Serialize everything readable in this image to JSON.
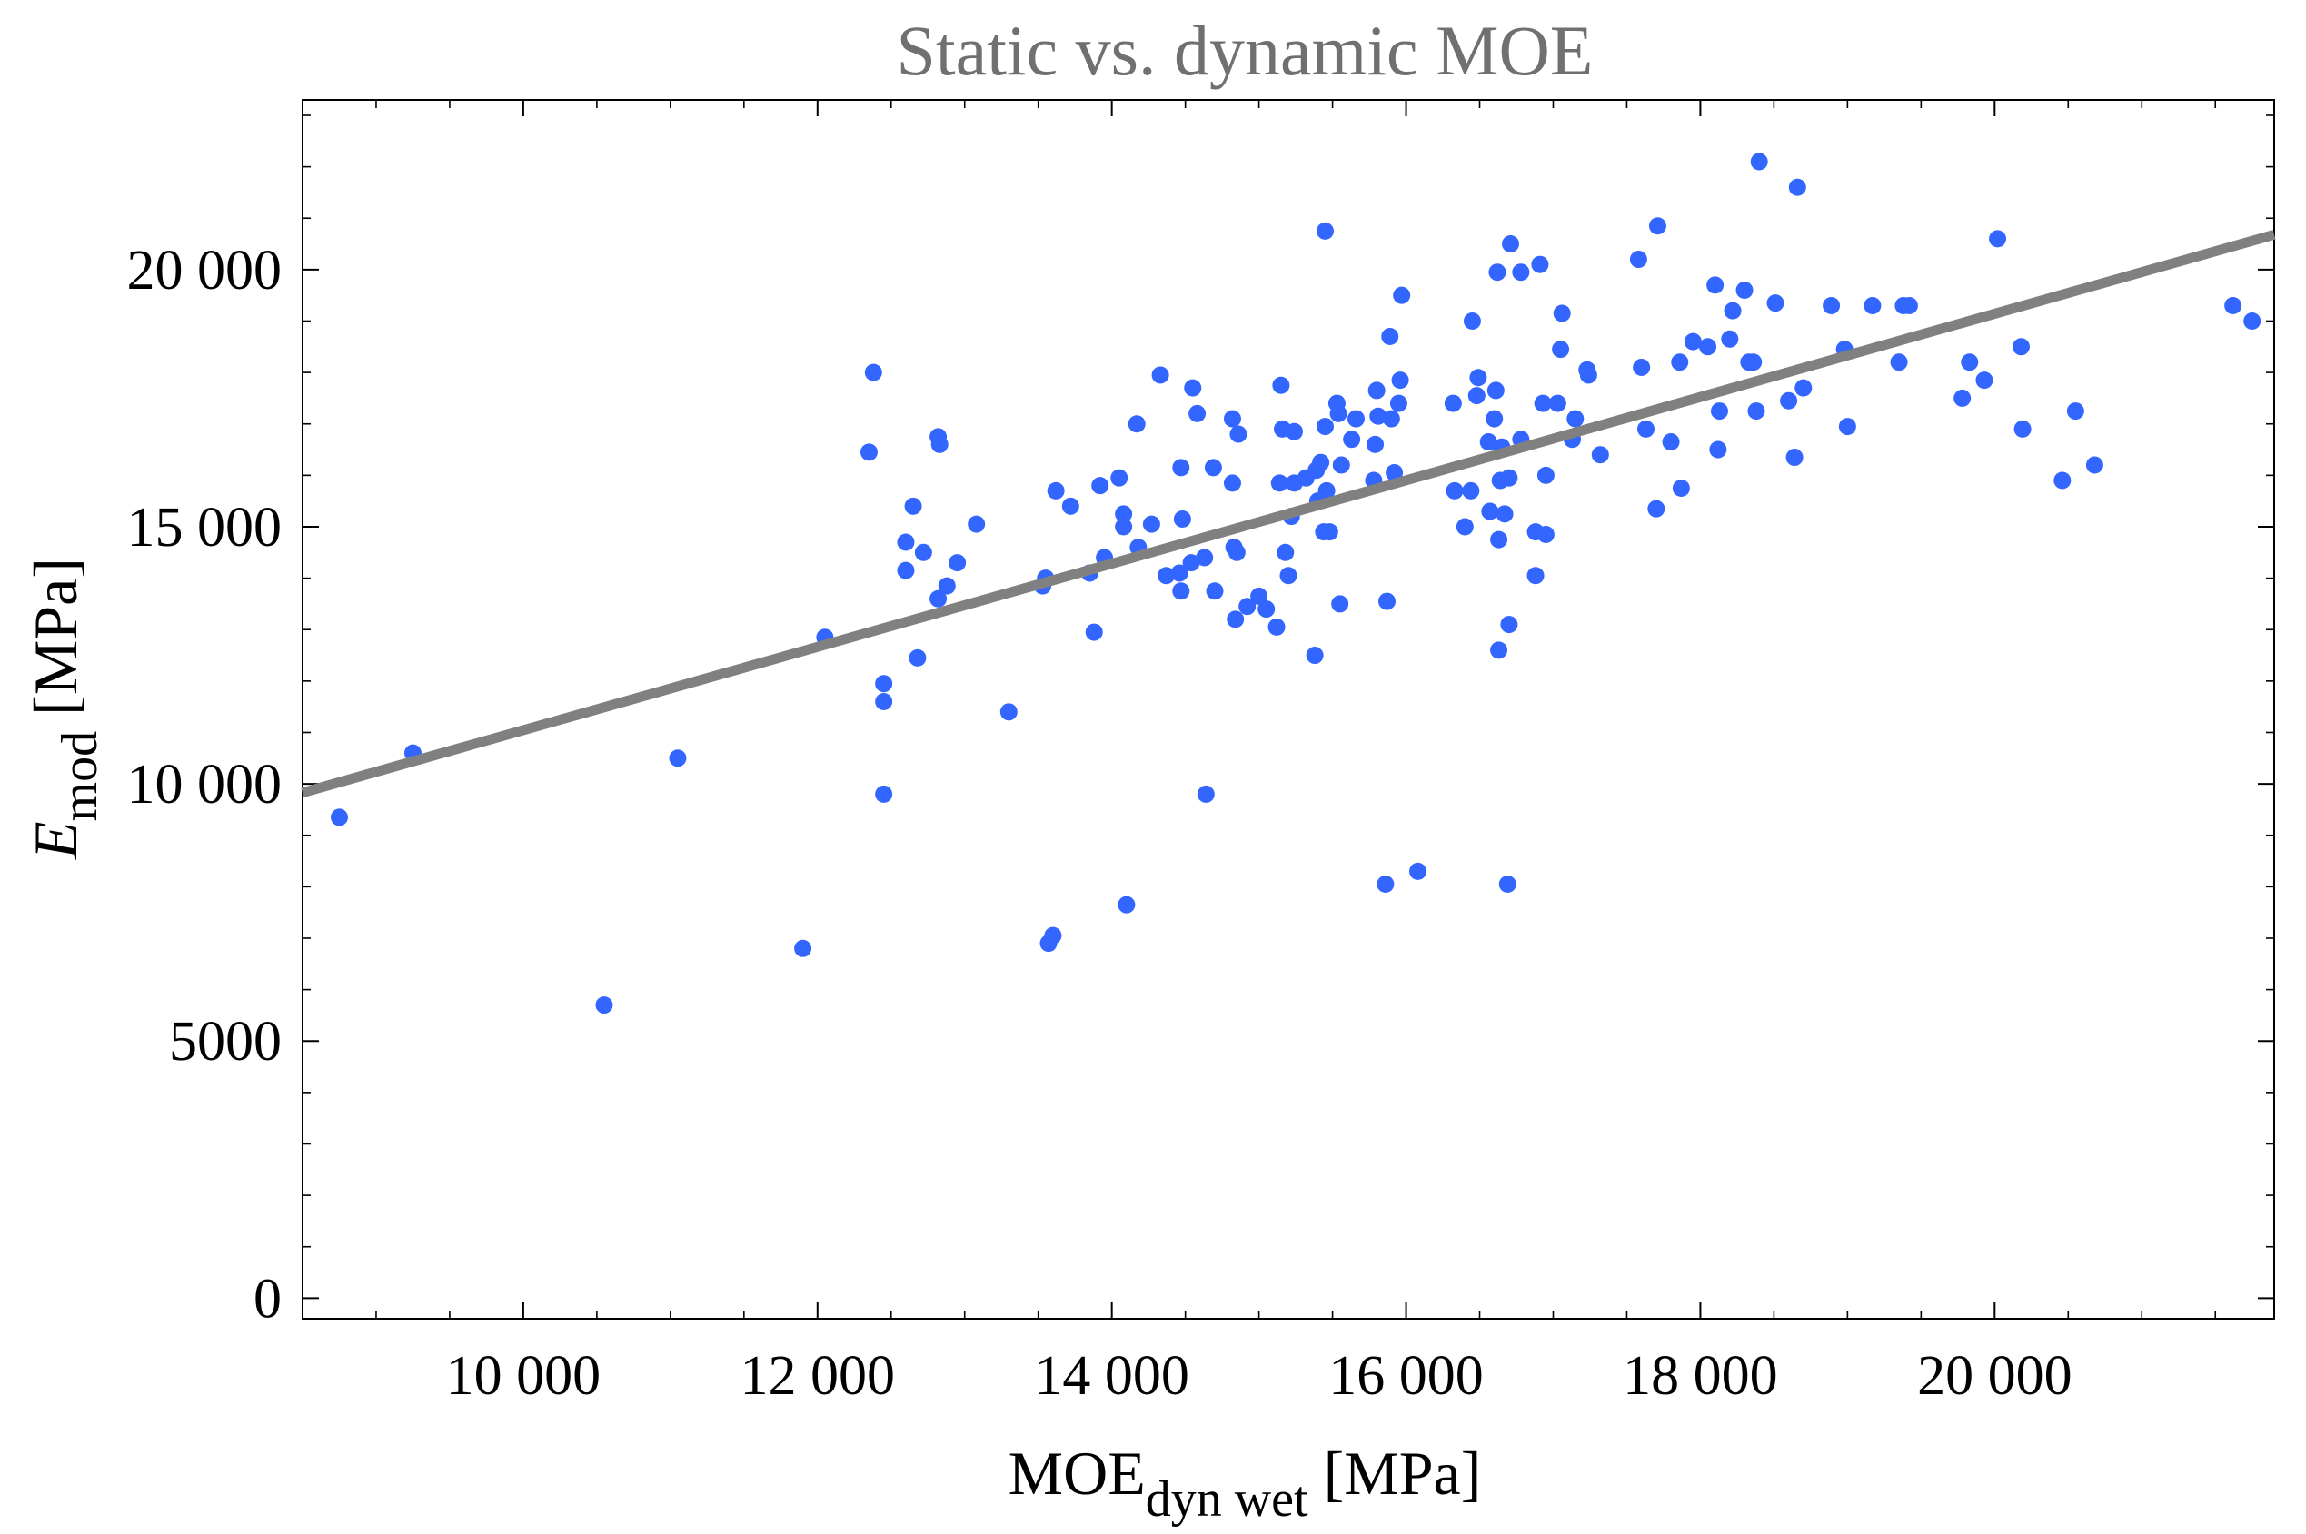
{
  "chart_data": {
    "type": "scatter",
    "title": "Static vs. dynamic MOE",
    "xlabel": {
      "main": "MOE",
      "sub": "dyn wet",
      "unit": " [MPa]"
    },
    "ylabel": {
      "main": "E",
      "sub": "mod",
      "unit": " [MPa]"
    },
    "xlim": [
      8500,
      21900
    ],
    "ylim": [
      -400,
      23300
    ],
    "xticks": [
      {
        "value": 10000,
        "label": "10 000"
      },
      {
        "value": 12000,
        "label": "12 000"
      },
      {
        "value": 14000,
        "label": "14 000"
      },
      {
        "value": 16000,
        "label": "16 000"
      },
      {
        "value": 18000,
        "label": "18 000"
      },
      {
        "value": 20000,
        "label": "20 000"
      }
    ],
    "yticks": [
      {
        "value": 0,
        "label": "0"
      },
      {
        "value": 5000,
        "label": "5000"
      },
      {
        "value": 10000,
        "label": "10 000"
      },
      {
        "value": 15000,
        "label": "15 000"
      },
      {
        "value": 20000,
        "label": "20 000"
      }
    ],
    "x_minor_step": 500,
    "y_minor_step": 1000,
    "grid": false,
    "trend_line": {
      "x": [
        8500,
        21900
      ],
      "y": [
        9830,
        20680
      ]
    },
    "colors": {
      "point": "#3366ff",
      "trend_line": "#808080",
      "title": "#707070",
      "axis": "#000000"
    },
    "points": [
      [
        8750,
        9350
      ],
      [
        9250,
        10600
      ],
      [
        10550,
        5700
      ],
      [
        11050,
        10500
      ],
      [
        11900,
        6800
      ],
      [
        12050,
        12850
      ],
      [
        12350,
        16450
      ],
      [
        12380,
        18000
      ],
      [
        12450,
        11950
      ],
      [
        12450,
        11600
      ],
      [
        12450,
        9800
      ],
      [
        12600,
        14150
      ],
      [
        12600,
        14700
      ],
      [
        12650,
        15400
      ],
      [
        12680,
        12450
      ],
      [
        12720,
        14500
      ],
      [
        12820,
        16750
      ],
      [
        12830,
        16600
      ],
      [
        12820,
        13600
      ],
      [
        12880,
        13850
      ],
      [
        12950,
        14300
      ],
      [
        13080,
        15050
      ],
      [
        13300,
        11400
      ],
      [
        13530,
        13850
      ],
      [
        13550,
        14000
      ],
      [
        13570,
        6900
      ],
      [
        13600,
        7050
      ],
      [
        13620,
        15700
      ],
      [
        13720,
        15400
      ],
      [
        13850,
        14100
      ],
      [
        13880,
        12950
      ],
      [
        13920,
        15800
      ],
      [
        13950,
        14400
      ],
      [
        14050,
        15950
      ],
      [
        14080,
        15000
      ],
      [
        14080,
        15250
      ],
      [
        14100,
        7650
      ],
      [
        14170,
        17000
      ],
      [
        14180,
        14600
      ],
      [
        14270,
        15050
      ],
      [
        14330,
        17950
      ],
      [
        14370,
        14050
      ],
      [
        14460,
        14100
      ],
      [
        14470,
        13750
      ],
      [
        14470,
        16150
      ],
      [
        14480,
        15150
      ],
      [
        14540,
        14300
      ],
      [
        14550,
        17700
      ],
      [
        14580,
        17200
      ],
      [
        14630,
        14400
      ],
      [
        14640,
        9800
      ],
      [
        14690,
        16150
      ],
      [
        14700,
        13750
      ],
      [
        14820,
        17100
      ],
      [
        14820,
        15850
      ],
      [
        14830,
        14600
      ],
      [
        14840,
        13200
      ],
      [
        14850,
        14500
      ],
      [
        14860,
        16800
      ],
      [
        14920,
        13450
      ],
      [
        15000,
        13650
      ],
      [
        15050,
        13400
      ],
      [
        15120,
        13050
      ],
      [
        15140,
        15850
      ],
      [
        15150,
        17750
      ],
      [
        15160,
        16900
      ],
      [
        15180,
        14500
      ],
      [
        15200,
        14050
      ],
      [
        15220,
        15200
      ],
      [
        15240,
        16850
      ],
      [
        15240,
        15850
      ],
      [
        15320,
        15950
      ],
      [
        15380,
        12500
      ],
      [
        15390,
        16100
      ],
      [
        15400,
        15500
      ],
      [
        15420,
        16250
      ],
      [
        15440,
        14900
      ],
      [
        15450,
        16950
      ],
      [
        15450,
        20750
      ],
      [
        15460,
        15700
      ],
      [
        15480,
        14900
      ],
      [
        15530,
        17400
      ],
      [
        15540,
        17200
      ],
      [
        15550,
        13500
      ],
      [
        15560,
        16200
      ],
      [
        15630,
        16700
      ],
      [
        15660,
        17100
      ],
      [
        15780,
        15900
      ],
      [
        15790,
        16600
      ],
      [
        15800,
        17650
      ],
      [
        15810,
        17150
      ],
      [
        15860,
        8050
      ],
      [
        15870,
        13550
      ],
      [
        15890,
        18700
      ],
      [
        15900,
        17100
      ],
      [
        15920,
        16050
      ],
      [
        15950,
        17400
      ],
      [
        15960,
        17850
      ],
      [
        15970,
        19500
      ],
      [
        16080,
        8300
      ],
      [
        16320,
        17400
      ],
      [
        16330,
        15700
      ],
      [
        16400,
        15000
      ],
      [
        16440,
        15700
      ],
      [
        16450,
        19000
      ],
      [
        16480,
        17550
      ],
      [
        16490,
        17900
      ],
      [
        16560,
        16650
      ],
      [
        16570,
        15300
      ],
      [
        16600,
        17100
      ],
      [
        16610,
        17650
      ],
      [
        16620,
        19950
      ],
      [
        16630,
        12600
      ],
      [
        16630,
        14750
      ],
      [
        16640,
        15900
      ],
      [
        16650,
        16550
      ],
      [
        16670,
        15250
      ],
      [
        16690,
        8050
      ],
      [
        16700,
        15950
      ],
      [
        16700,
        13100
      ],
      [
        16710,
        20500
      ],
      [
        16780,
        16700
      ],
      [
        16780,
        19950
      ],
      [
        16880,
        14050
      ],
      [
        16880,
        14900
      ],
      [
        16910,
        20100
      ],
      [
        16930,
        17400
      ],
      [
        16950,
        14850
      ],
      [
        16950,
        16000
      ],
      [
        17030,
        17400
      ],
      [
        17050,
        18450
      ],
      [
        17060,
        19150
      ],
      [
        17130,
        16700
      ],
      [
        17150,
        17100
      ],
      [
        17230,
        18050
      ],
      [
        17240,
        17950
      ],
      [
        17320,
        16400
      ],
      [
        17580,
        20200
      ],
      [
        17600,
        18100
      ],
      [
        17630,
        16900
      ],
      [
        17700,
        15350
      ],
      [
        17710,
        20850
      ],
      [
        17800,
        16650
      ],
      [
        17860,
        18200
      ],
      [
        17870,
        15750
      ],
      [
        17950,
        18600
      ],
      [
        18050,
        18500
      ],
      [
        18100,
        19700
      ],
      [
        18120,
        16500
      ],
      [
        18130,
        17250
      ],
      [
        18200,
        18650
      ],
      [
        18220,
        19200
      ],
      [
        18300,
        19600
      ],
      [
        18330,
        18200
      ],
      [
        18360,
        18200
      ],
      [
        18380,
        17250
      ],
      [
        18400,
        22100
      ],
      [
        18510,
        19350
      ],
      [
        18600,
        17450
      ],
      [
        18640,
        16350
      ],
      [
        18660,
        21600
      ],
      [
        18700,
        17700
      ],
      [
        18890,
        19300
      ],
      [
        18980,
        18450
      ],
      [
        19000,
        16950
      ],
      [
        19170,
        19300
      ],
      [
        19350,
        18200
      ],
      [
        19380,
        19300
      ],
      [
        19420,
        19300
      ],
      [
        19780,
        17500
      ],
      [
        19830,
        18200
      ],
      [
        19930,
        17850
      ],
      [
        20020,
        20600
      ],
      [
        20180,
        18500
      ],
      [
        20190,
        16900
      ],
      [
        20460,
        15900
      ],
      [
        20550,
        17250
      ],
      [
        20680,
        16200
      ],
      [
        21620,
        19300
      ],
      [
        21750,
        19000
      ]
    ]
  }
}
